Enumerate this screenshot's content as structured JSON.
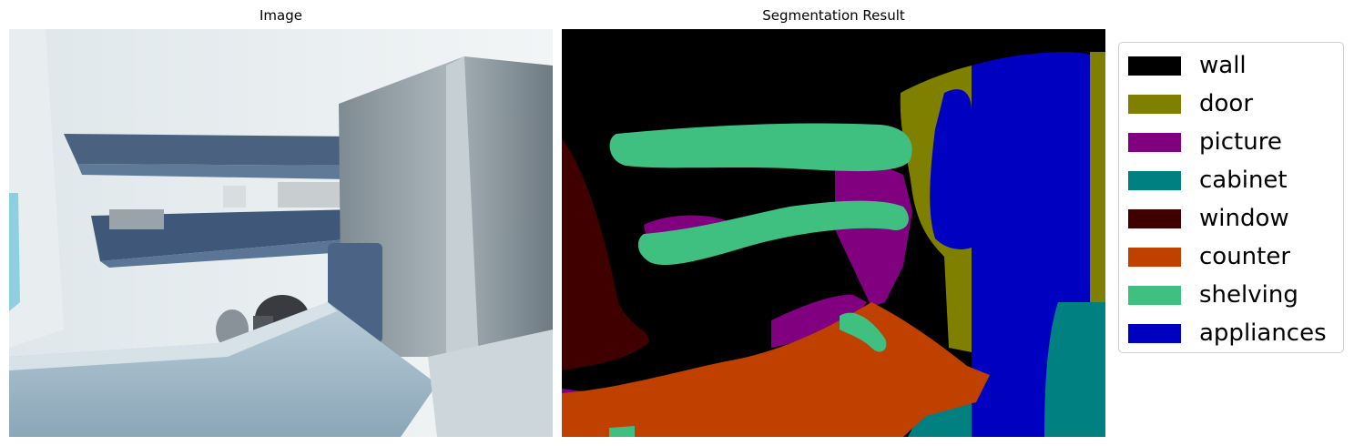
{
  "titles": {
    "image": "Image",
    "segmentation": "Segmentation Result"
  },
  "legend": {
    "items": [
      {
        "label": "wall",
        "color": "#000000"
      },
      {
        "label": "door",
        "color": "#808000"
      },
      {
        "label": "picture",
        "color": "#800080"
      },
      {
        "label": "cabinet",
        "color": "#008080"
      },
      {
        "label": "window",
        "color": "#400000"
      },
      {
        "label": "counter",
        "color": "#c04000"
      },
      {
        "label": "shelving",
        "color": "#40c080"
      },
      {
        "label": "appliances",
        "color": "#0000c0"
      }
    ]
  }
}
